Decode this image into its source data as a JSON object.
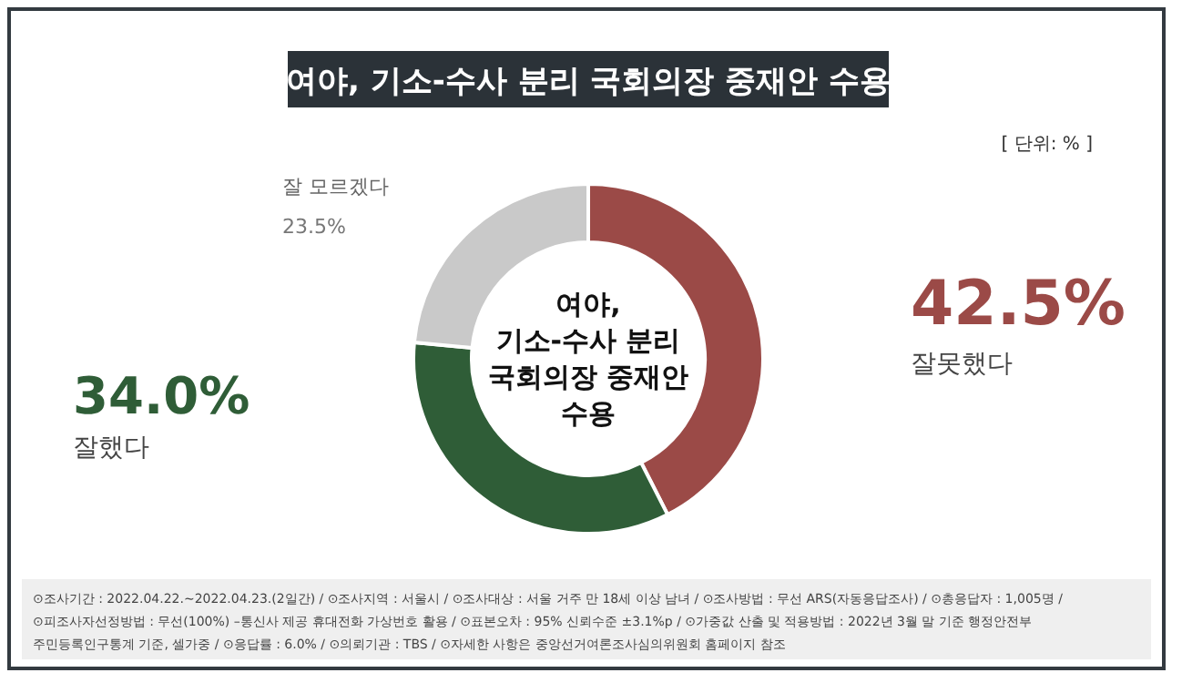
{
  "chart_data": {
    "type": "donut",
    "title": "여야, 기소-수사 분리 국회의장 중재안 수용",
    "categories": [
      "잘못했다",
      "잘했다",
      "잘 모르겠다"
    ],
    "values": [
      42.5,
      34.0,
      23.5
    ],
    "value_labels": [
      "42.5%",
      "34.0%",
      "23.5%"
    ],
    "colors": [
      "#9b4a47",
      "#2f5d37",
      "#c9c9c9"
    ],
    "annotations": [
      "여야,\n기소-수사 분리\n국회의장 중재안\n수용",
      "[ 단위: % ]",
      "⊙조사기간 : 2022.04.22.~2022.04.23.(2일간) / ⊙조사지역 : 서울시 / ⊙조사대상 : 서울 거주 만 18세 이상 남녀 / ⊙조사방법 : 무선 ARS(자동응답조사) / ⊙총응답자 : 1,005명 /",
      "⊙피조사자선정방법 : 무선(100%) –통신사 제공 휴대전화 가상번호 활용 / ⊙표본오차 : 95% 신뢰수준 ±3.1%p / ⊙가중값 산출 및 적용방법 : 2022년 3월 말 기준 행정안전부",
      "주민등록인구통계 기준, 셀가중 / ⊙응답률 : 6.0% / ⊙의뢰기관 : TBS / ⊙자세한 사항은 중앙선거여론조사심의위원회 홈페이지 참조"
    ]
  }
}
